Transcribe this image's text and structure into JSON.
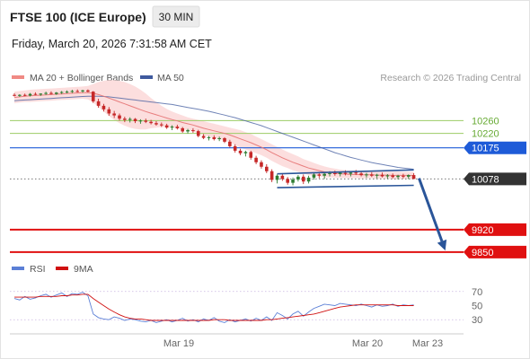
{
  "header": {
    "title": "FTSE 100 (ICE Europe)",
    "interval": "30 MIN",
    "datetime": "Friday, March 20, 2026 7:31:58 AM CET",
    "credit": "Research © 2026 Trading Central"
  },
  "legend": {
    "ma20": "MA 20 + Bollinger Bands",
    "ma50": "MA 50"
  },
  "rsi_legend": {
    "rsi": "RSI",
    "ma9": "9MA"
  },
  "colors": {
    "up": "#2e7d32",
    "down": "#c62828",
    "ma20": "#e57373",
    "bollinger_fill": "#fbd8d8",
    "ma50": "#3f5a9e",
    "resistance_green": "#9ccc65",
    "pivot_blue": "#1e5bd8",
    "support_red": "#e01010",
    "last_price_bg": "#333333",
    "arrow": "#2a5599",
    "rsi": "#5b7fd6",
    "rsi_ma": "#d01010"
  },
  "chart_data": {
    "type": "candlestick",
    "instrument": "FTSE 100 (ICE Europe)",
    "interval": "30 MIN",
    "x_ticks": [
      "Mar 19",
      "Mar 20",
      "Mar 23"
    ],
    "y_range": [
      9830,
      10370
    ],
    "levels": {
      "resistance": [
        10260,
        10220
      ],
      "pivot": 10175,
      "last": 10078,
      "support": [
        9920,
        9850
      ]
    },
    "level_labels": {
      "r2": "10260",
      "r1": "10220",
      "pivot": "10175",
      "last": "10078",
      "s1": "9920",
      "s2": "9850"
    },
    "candles": [
      [
        10340,
        10345,
        10335,
        10337
      ],
      [
        10337,
        10342,
        10334,
        10340
      ],
      [
        10340,
        10344,
        10336,
        10338
      ],
      [
        10338,
        10346,
        10335,
        10343
      ],
      [
        10343,
        10348,
        10339,
        10341
      ],
      [
        10341,
        10345,
        10337,
        10344
      ],
      [
        10344,
        10350,
        10340,
        10346
      ],
      [
        10346,
        10351,
        10341,
        10343
      ],
      [
        10343,
        10349,
        10340,
        10347
      ],
      [
        10347,
        10352,
        10343,
        10349
      ],
      [
        10349,
        10354,
        10345,
        10350
      ],
      [
        10350,
        10356,
        10346,
        10352
      ],
      [
        10352,
        10357,
        10348,
        10351
      ],
      [
        10351,
        10356,
        10347,
        10354
      ],
      [
        10354,
        10357,
        10348,
        10350
      ],
      [
        10350,
        10352,
        10315,
        10320
      ],
      [
        10320,
        10328,
        10300,
        10306
      ],
      [
        10306,
        10312,
        10288,
        10295
      ],
      [
        10295,
        10302,
        10275,
        10282
      ],
      [
        10282,
        10290,
        10268,
        10276
      ],
      [
        10276,
        10282,
        10260,
        10266
      ],
      [
        10266,
        10272,
        10255,
        10262
      ],
      [
        10262,
        10270,
        10254,
        10265
      ],
      [
        10265,
        10268,
        10252,
        10258
      ],
      [
        10258,
        10264,
        10250,
        10260
      ],
      [
        10260,
        10266,
        10252,
        10256
      ],
      [
        10256,
        10262,
        10248,
        10252
      ],
      [
        10252,
        10258,
        10244,
        10248
      ],
      [
        10248,
        10254,
        10240,
        10245
      ],
      [
        10245,
        10250,
        10234,
        10238
      ],
      [
        10238,
        10245,
        10230,
        10241
      ],
      [
        10241,
        10247,
        10232,
        10236
      ],
      [
        10236,
        10240,
        10222,
        10226
      ],
      [
        10226,
        10234,
        10220,
        10230
      ],
      [
        10230,
        10236,
        10222,
        10227
      ],
      [
        10227,
        10231,
        10208,
        10212
      ],
      [
        10212,
        10218,
        10202,
        10206
      ],
      [
        10206,
        10212,
        10198,
        10208
      ],
      [
        10208,
        10214,
        10198,
        10202
      ],
      [
        10202,
        10210,
        10196,
        10205
      ],
      [
        10205,
        10208,
        10190,
        10194
      ],
      [
        10194,
        10200,
        10176,
        10180
      ],
      [
        10180,
        10186,
        10160,
        10166
      ],
      [
        10166,
        10172,
        10152,
        10158
      ],
      [
        10158,
        10166,
        10148,
        10162
      ],
      [
        10162,
        10166,
        10138,
        10144
      ],
      [
        10144,
        10150,
        10124,
        10130
      ],
      [
        10130,
        10136,
        10110,
        10116
      ],
      [
        10116,
        10124,
        10096,
        10102
      ],
      [
        10102,
        10108,
        10068,
        10075
      ],
      [
        10075,
        10092,
        10064,
        10088
      ],
      [
        10088,
        10096,
        10072,
        10078
      ],
      [
        10078,
        10084,
        10060,
        10066
      ],
      [
        10066,
        10082,
        10058,
        10076
      ],
      [
        10076,
        10090,
        10070,
        10085
      ],
      [
        10085,
        10092,
        10062,
        10070
      ],
      [
        10070,
        10088,
        10064,
        10082
      ],
      [
        10082,
        10098,
        10076,
        10092
      ],
      [
        10092,
        10100,
        10080,
        10088
      ],
      [
        10088,
        10096,
        10078,
        10094
      ],
      [
        10094,
        10102,
        10086,
        10096
      ],
      [
        10096,
        10104,
        10088,
        10093
      ],
      [
        10093,
        10100,
        10086,
        10097
      ],
      [
        10097,
        10105,
        10089,
        10094
      ],
      [
        10094,
        10102,
        10086,
        10098
      ],
      [
        10098,
        10106,
        10090,
        10095
      ],
      [
        10095,
        10101,
        10086,
        10090
      ],
      [
        10090,
        10097,
        10082,
        10092
      ],
      [
        10092,
        10099,
        10084,
        10088
      ],
      [
        10088,
        10094,
        10080,
        10091
      ],
      [
        10091,
        10098,
        10083,
        10086
      ],
      [
        10086,
        10093,
        10079,
        10089
      ],
      [
        10089,
        10095,
        10080,
        10084
      ],
      [
        10084,
        10091,
        10077,
        10088
      ],
      [
        10088,
        10094,
        10080,
        10085
      ],
      [
        10085,
        10092,
        10078,
        10090
      ],
      [
        10090,
        10096,
        10082,
        10078
      ]
    ],
    "ma20": [
      10332,
      10334,
      10336,
      10337,
      10338,
      10339,
      10340,
      10341,
      10342,
      10343,
      10344,
      10345,
      10346,
      10347,
      10347,
      10345,
      10341,
      10336,
      10330,
      10324,
      10318,
      10312,
      10306,
      10300,
      10294,
      10288,
      10283,
      10278,
      10273,
      10268,
      10263,
      10259,
      10254,
      10250,
      10246,
      10241,
      10236,
      10232,
      10228,
      10224,
      10220,
      10215,
      10209,
      10203,
      10197,
      10191,
      10184,
      10177,
      10169,
      10160,
      10152,
      10144,
      10137,
      10130,
      10124,
      10118,
      10112,
      10108,
      10104,
      10100,
      10098,
      10096,
      10094,
      10093,
      10092,
      10092,
      10091,
      10091,
      10091,
      10090,
      10090,
      10090,
      10089,
      10089,
      10089,
      10089,
      10088
    ],
    "bb_upper": [
      10350,
      10352,
      10354,
      10356,
      10357,
      10358,
      10359,
      10360,
      10361,
      10362,
      10363,
      10364,
      10365,
      10366,
      10368,
      10374,
      10380,
      10384,
      10386,
      10386,
      10384,
      10380,
      10374,
      10366,
      10356,
      10344,
      10330,
      10318,
      10306,
      10296,
      10288,
      10282,
      10276,
      10270,
      10266,
      10262,
      10258,
      10254,
      10250,
      10246,
      10242,
      10238,
      10234,
      10230,
      10224,
      10218,
      10210,
      10202,
      10194,
      10186,
      10178,
      10170,
      10162,
      10155,
      10148,
      10140,
      10134,
      10128,
      10122,
      10117,
      10113,
      10110,
      10107,
      10105,
      10104,
      10103,
      10103,
      10102,
      10102,
      10102,
      10101,
      10101,
      10101,
      10101,
      10100,
      10100,
      10100
    ],
    "bb_lower": [
      10314,
      10316,
      10318,
      10318,
      10319,
      10320,
      10321,
      10322,
      10323,
      10324,
      10325,
      10326,
      10327,
      10328,
      10326,
      10316,
      10302,
      10288,
      10274,
      10262,
      10252,
      10244,
      10238,
      10234,
      10232,
      10232,
      10236,
      10238,
      10240,
      10240,
      10238,
      10236,
      10232,
      10230,
      10226,
      10220,
      10214,
      10210,
      10206,
      10202,
      10198,
      10192,
      10184,
      10176,
      10170,
      10164,
      10158,
      10152,
      10144,
      10134,
      10126,
      10118,
      10112,
      10105,
      10100,
      10096,
      10090,
      10088,
      10086,
      10083,
      10083,
      10082,
      10081,
      10081,
      10080,
      10081,
      10079,
      10080,
      10080,
      10078,
      10079,
      10079,
      10077,
      10077,
      10078,
      10078,
      10076
    ],
    "ma50": [
      10322,
      10323,
      10324,
      10325,
      10326,
      10327,
      10328,
      10329,
      10330,
      10331,
      10332,
      10333,
      10334,
      10335,
      10336,
      10336,
      10336,
      10335,
      10334,
      10332,
      10330,
      10328,
      10326,
      10324,
      10322,
      10320,
      10318,
      10316,
      10314,
      10312,
      10310,
      10307,
      10304,
      10301,
      10298,
      10295,
      10292,
      10289,
      10285,
      10281,
      10277,
      10273,
      10269,
      10264,
      10259,
      10254,
      10249,
      10244,
      10238,
      10232,
      10226,
      10220,
      10214,
      10208,
      10202,
      10196,
      10190,
      10184,
      10178,
      10172,
      10166,
      10160,
      10155,
      10150,
      10145,
      10141,
      10137,
      10133,
      10129,
      10126,
      10123,
      10120,
      10117,
      10114,
      10112,
      10110,
      10108
    ],
    "channel": {
      "upper": [
        [
          50,
          10094
        ],
        [
          76,
          10106
        ]
      ],
      "lower": [
        [
          50,
          10051
        ],
        [
          76,
          10058
        ]
      ]
    },
    "projection": [
      [
        77,
        10080
      ],
      [
        82,
        9855
      ]
    ],
    "rsi": {
      "ticks": [
        70,
        50,
        30
      ],
      "y_range": [
        15,
        85
      ],
      "values": [
        60,
        58,
        63,
        59,
        61,
        64,
        66,
        62,
        65,
        68,
        63,
        67,
        66,
        69,
        64,
        38,
        33,
        31,
        30,
        34,
        32,
        29,
        31,
        30,
        28,
        27,
        29,
        26,
        28,
        30,
        27,
        29,
        32,
        28,
        30,
        27,
        31,
        29,
        33,
        28,
        26,
        30,
        27,
        29,
        31,
        28,
        32,
        29,
        34,
        29,
        40,
        36,
        31,
        38,
        42,
        35,
        41,
        46,
        49,
        52,
        51,
        50,
        53,
        52,
        51,
        50,
        52,
        50,
        48,
        51,
        49,
        50,
        52,
        49,
        51,
        50,
        51
      ],
      "ma9": [
        62,
        62,
        62,
        62,
        62,
        63,
        63,
        63,
        63,
        64,
        64,
        65,
        65,
        66,
        66,
        60,
        55,
        50,
        45,
        41,
        37,
        34,
        32,
        31,
        31,
        30,
        29,
        29,
        29,
        29,
        29,
        29,
        29,
        29,
        29,
        29,
        29,
        29,
        30,
        30,
        30,
        29,
        29,
        29,
        29,
        29,
        29,
        29,
        30,
        30,
        31,
        32,
        33,
        34,
        35,
        36,
        37,
        38,
        40,
        42,
        44,
        46,
        48,
        49,
        50,
        51,
        51,
        51,
        51,
        51,
        51,
        51,
        51,
        50,
        50,
        50,
        50
      ]
    }
  }
}
